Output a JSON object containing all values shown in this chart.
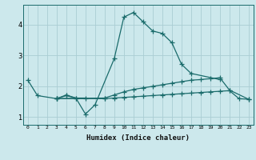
{
  "xlabel": "Humidex (Indice chaleur)",
  "bg_color": "#cce8ec",
  "line_color": "#1a6b6b",
  "grid_color": "#aacdd4",
  "ylim": [
    0.75,
    4.65
  ],
  "xlim": [
    -0.5,
    23.5
  ],
  "line1_x": [
    0,
    1,
    3,
    4,
    5,
    6,
    7,
    9,
    10,
    11,
    12,
    13,
    14,
    15,
    16,
    17,
    20
  ],
  "line1_y": [
    2.2,
    1.7,
    1.6,
    1.72,
    1.62,
    1.1,
    1.4,
    2.9,
    4.25,
    4.4,
    4.1,
    3.8,
    3.72,
    3.42,
    2.72,
    2.42,
    2.22
  ],
  "line2_x": [
    3,
    4,
    5,
    6
  ],
  "line2_y": [
    1.6,
    1.7,
    1.62,
    1.62
  ],
  "line3_x": [
    3,
    8,
    9,
    10,
    11,
    12,
    13,
    14,
    15,
    16,
    17,
    18,
    19,
    20,
    21,
    23
  ],
  "line3_y": [
    1.6,
    1.62,
    1.72,
    1.82,
    1.9,
    1.95,
    2.0,
    2.05,
    2.1,
    2.15,
    2.2,
    2.22,
    2.25,
    2.28,
    1.88,
    1.58
  ],
  "line4_x": [
    3,
    8,
    9,
    10,
    11,
    12,
    13,
    14,
    15,
    16,
    17,
    18,
    19,
    20,
    21,
    22,
    23
  ],
  "line4_y": [
    1.6,
    1.6,
    1.62,
    1.64,
    1.66,
    1.68,
    1.7,
    1.72,
    1.74,
    1.76,
    1.78,
    1.8,
    1.82,
    1.84,
    1.86,
    1.6,
    1.58
  ]
}
